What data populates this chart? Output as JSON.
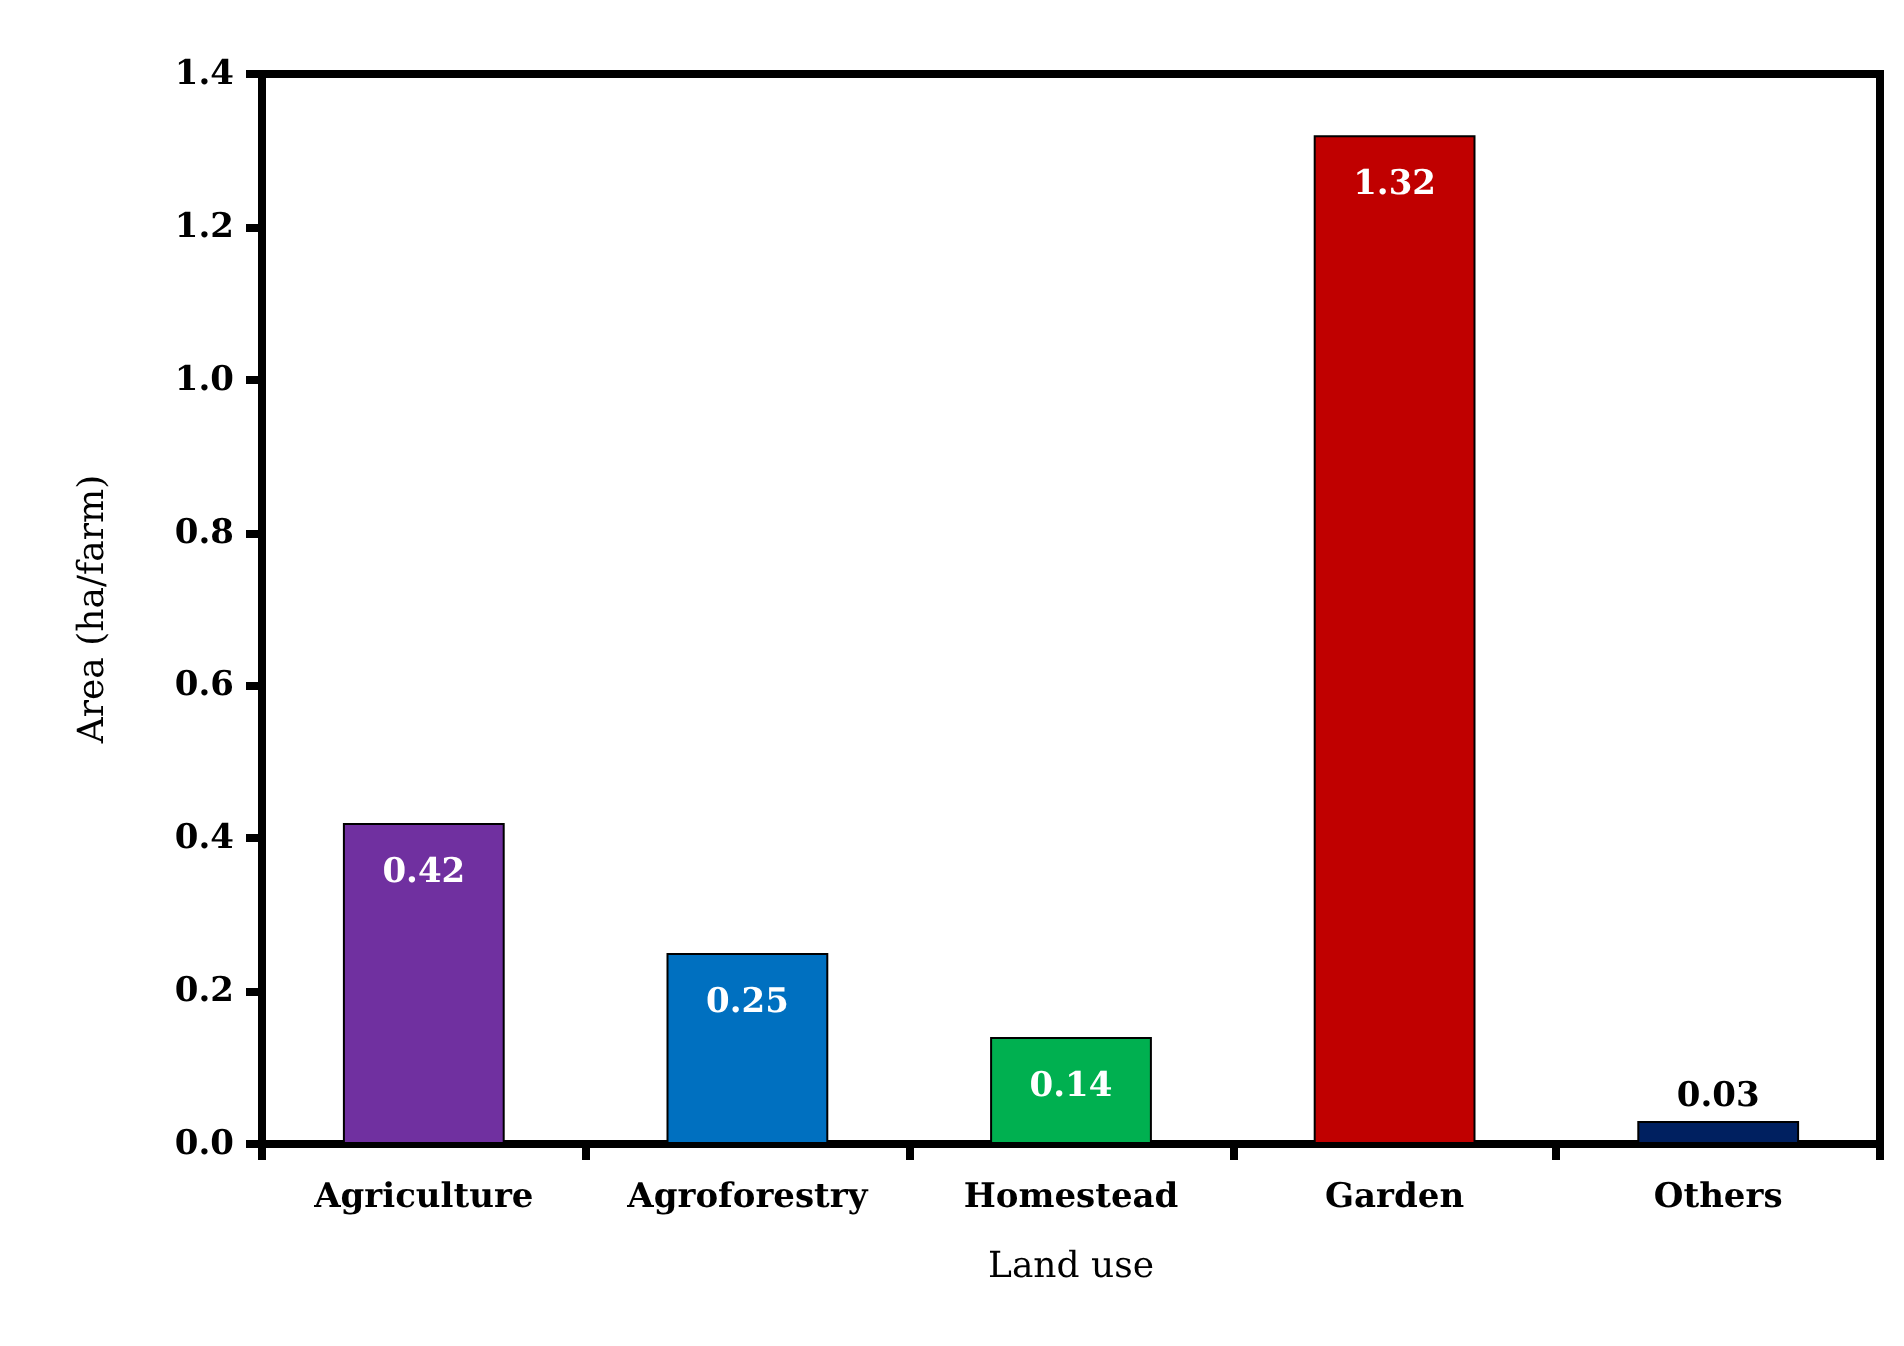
{
  "chart_data": {
    "type": "bar",
    "categories": [
      "Agriculture",
      "Agroforestry",
      "Homestead",
      "Garden",
      "Others"
    ],
    "values": [
      0.42,
      0.25,
      0.14,
      1.32,
      0.03
    ],
    "colors": [
      "#7030a0",
      "#0070c0",
      "#00b050",
      "#c00000",
      "#002060"
    ],
    "xlabel": "Land use",
    "ylabel": "Area (ha/farm)",
    "ylim": [
      0,
      1.4
    ],
    "yticks": [
      {
        "value": 0,
        "label": "0.0"
      },
      0.2,
      0.4,
      0.6,
      0.8,
      {
        "value": 1,
        "label": "1.0"
      },
      1.2,
      1.4
    ],
    "grid": false,
    "data_labels": true
  }
}
